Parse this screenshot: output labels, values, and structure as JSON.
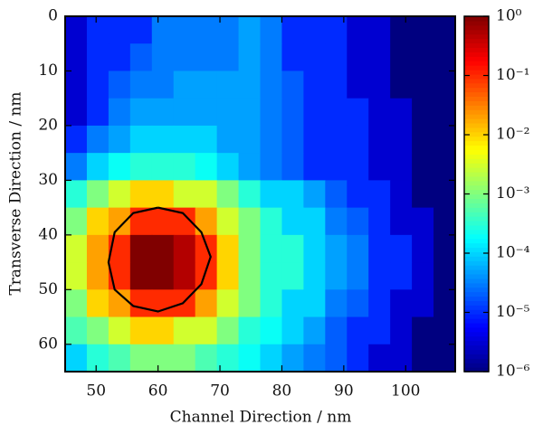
{
  "chart_data": {
    "type": "heatmap",
    "x_label": "Channel Direction / nm",
    "y_label": "Transverse Direction / nm",
    "x": [
      46.75,
      50.25,
      53.75,
      57.25,
      60.75,
      64.25,
      67.75,
      71.25,
      74.75,
      78.25,
      81.75,
      85.25,
      88.75,
      92.25,
      95.75,
      99.25,
      102.75,
      106.25
    ],
    "y": [
      2.5,
      7.5,
      12.5,
      17.5,
      22.5,
      27.5,
      32.5,
      37.5,
      42.5,
      47.5,
      52.5,
      57.5,
      62.5
    ],
    "z": [
      [
        3e-06,
        1e-05,
        1e-05,
        1e-05,
        3e-05,
        3e-05,
        3e-05,
        3e-05,
        5e-05,
        3e-05,
        1e-05,
        1e-05,
        1e-05,
        3e-06,
        3e-06,
        1e-06,
        1e-06,
        1e-06
      ],
      [
        3e-06,
        1e-05,
        1e-05,
        2e-05,
        3e-05,
        3e-05,
        3e-05,
        3e-05,
        5e-05,
        3e-05,
        1e-05,
        1e-05,
        1e-05,
        3e-06,
        3e-06,
        1e-06,
        1e-06,
        1e-06
      ],
      [
        3e-06,
        1e-05,
        2e-05,
        3e-05,
        3e-05,
        5e-05,
        5e-05,
        5e-05,
        5e-05,
        3e-05,
        2e-05,
        1e-05,
        1e-05,
        3e-06,
        3e-06,
        1e-06,
        1e-06,
        1e-06
      ],
      [
        3e-06,
        1e-05,
        3e-05,
        5e-05,
        5e-05,
        5e-05,
        5e-05,
        5e-05,
        5e-05,
        3e-05,
        2e-05,
        1e-05,
        1e-05,
        1e-05,
        3e-06,
        3e-06,
        1e-06,
        1e-06
      ],
      [
        1e-05,
        3e-05,
        5e-05,
        0.0001,
        0.0001,
        0.0001,
        0.0001,
        5e-05,
        5e-05,
        3e-05,
        2e-05,
        1e-05,
        1e-05,
        1e-05,
        3e-06,
        3e-06,
        1e-06,
        1e-06
      ],
      [
        3e-05,
        0.0001,
        0.0002,
        0.0003,
        0.0003,
        0.0003,
        0.0002,
        0.0001,
        5e-05,
        3e-05,
        2e-05,
        1e-05,
        1e-05,
        1e-05,
        3e-06,
        3e-06,
        1e-06,
        1e-06
      ],
      [
        0.0003,
        0.001,
        0.003,
        0.01,
        0.01,
        0.003,
        0.003,
        0.001,
        0.0003,
        0.0001,
        0.0001,
        5e-05,
        2e-05,
        1e-05,
        1e-05,
        3e-06,
        1e-06,
        1e-06
      ],
      [
        0.001,
        0.01,
        0.02,
        0.1,
        0.1,
        0.1,
        0.02,
        0.003,
        0.001,
        0.0003,
        0.0001,
        0.0001,
        3e-05,
        2e-05,
        1e-05,
        3e-06,
        3e-06,
        1e-06
      ],
      [
        0.003,
        0.02,
        0.1,
        1,
        1,
        0.5,
        0.1,
        0.01,
        0.001,
        0.0003,
        0.0003,
        0.0001,
        5e-05,
        3e-05,
        1e-05,
        1e-05,
        3e-06,
        1e-06
      ],
      [
        0.003,
        0.02,
        0.1,
        1,
        1,
        0.5,
        0.1,
        0.01,
        0.001,
        0.0003,
        0.0003,
        0.0001,
        5e-05,
        3e-05,
        1e-05,
        1e-05,
        3e-06,
        1e-06
      ],
      [
        0.001,
        0.01,
        0.02,
        0.1,
        0.1,
        0.1,
        0.02,
        0.003,
        0.001,
        0.0003,
        0.0001,
        0.0001,
        3e-05,
        2e-05,
        1e-05,
        3e-06,
        3e-06,
        1e-06
      ],
      [
        0.0005,
        0.001,
        0.003,
        0.01,
        0.01,
        0.003,
        0.003,
        0.001,
        0.0003,
        0.0002,
        0.0001,
        5e-05,
        2e-05,
        1e-05,
        1e-05,
        3e-06,
        1e-06,
        1e-06
      ],
      [
        0.0001,
        0.0003,
        0.0005,
        0.001,
        0.001,
        0.001,
        0.0005,
        0.0003,
        0.0002,
        0.0001,
        5e-05,
        3e-05,
        2e-05,
        1e-05,
        3e-06,
        3e-06,
        1e-06,
        1e-06
      ]
    ],
    "contour": {
      "x": [
        60,
        64,
        67,
        68.5,
        67,
        64,
        60,
        56,
        53,
        52,
        53,
        56,
        60
      ],
      "y": [
        35,
        36,
        39.5,
        44,
        49,
        52.5,
        54,
        53,
        50,
        45,
        39.5,
        36,
        35
      ]
    },
    "xlim": [
      45,
      108
    ],
    "xticks": [
      50,
      60,
      70,
      80,
      90,
      100
    ],
    "ylim": [
      0,
      65
    ],
    "y_inverted": true,
    "yticks": [
      0,
      10,
      20,
      30,
      40,
      50,
      60
    ],
    "colormap": "jet",
    "color_log": true,
    "clim": [
      1e-06,
      1
    ],
    "cticks": [
      {
        "value": 1e-06,
        "label": "10⁻⁶"
      },
      {
        "value": 1e-05,
        "label": "10⁻⁵"
      },
      {
        "value": 0.0001,
        "label": "10⁻⁴"
      },
      {
        "value": 0.001,
        "label": "10⁻³"
      },
      {
        "value": 0.01,
        "label": "10⁻²"
      },
      {
        "value": 0.1,
        "label": "10⁻¹"
      },
      {
        "value": 1,
        "label": "10⁰"
      }
    ],
    "contour_color": "#000000"
  }
}
